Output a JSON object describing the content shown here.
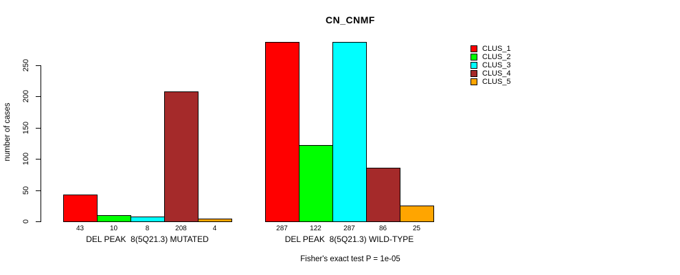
{
  "chart": {
    "title": "CN_CNMF",
    "ylabel": "number of cases",
    "footnote": "Fisher's exact test P = 1e-05"
  },
  "chart_data": {
    "type": "bar",
    "title": "CN_CNMF",
    "xlabel": "",
    "ylabel": "number of cases",
    "ylim": [
      0,
      290
    ],
    "yticks": [
      0,
      50,
      100,
      150,
      200,
      250
    ],
    "grid": false,
    "legend_position": "right",
    "bar_value_labels_shown": true,
    "categories": [
      "DEL PEAK  8(5Q21.3) MUTATED",
      "DEL PEAK  8(5Q21.3) WILD-TYPE"
    ],
    "series": [
      {
        "name": "CLUS_1",
        "color": "#FF0000",
        "values": [
          43,
          287
        ]
      },
      {
        "name": "CLUS_2",
        "color": "#00FF00",
        "values": [
          10,
          122
        ]
      },
      {
        "name": "CLUS_3",
        "color": "#00FFFF",
        "values": [
          8,
          287
        ]
      },
      {
        "name": "CLUS_4",
        "color": "#A52A2A",
        "values": [
          208,
          86
        ]
      },
      {
        "name": "CLUS_5",
        "color": "#FFA500",
        "values": [
          4,
          25
        ]
      }
    ],
    "annotation": "Fisher's exact test P = 1e-05"
  }
}
